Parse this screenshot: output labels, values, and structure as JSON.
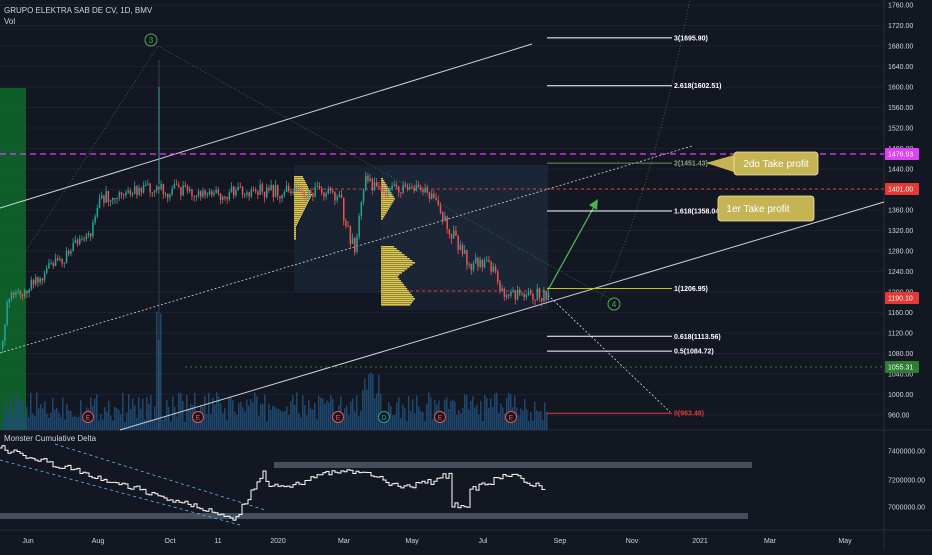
{
  "header": {
    "symbol_line": "GRUPO ELEKTRA SAB DE CV, 1D, BMV",
    "volume_label": "Vol"
  },
  "indicator": {
    "name": "Monster Cumulative Delta",
    "axis_ticks": [
      "7400000.00",
      "7200000.00",
      "7000000.00"
    ]
  },
  "colors": {
    "background": "#131722",
    "up_candle": "#26a69a",
    "down_candle": "#ef5350",
    "fib_line": "#ffffff",
    "fib_label": "#ffffff",
    "take_profit_box": "#c4b454",
    "magenta_level": "#e040fb",
    "red_level": "#e53935",
    "green_level": "#2e7d32",
    "volume_bar": "#1f4e79"
  },
  "chart_data": {
    "type": "candlestick",
    "title": "GRUPO ELEKTRA SAB DE CV, 1D, BMV",
    "x_tick_labels": [
      "Jun",
      "Aug",
      "Oct",
      "11",
      "2020",
      "Mar",
      "May",
      "Jul",
      "Sep",
      "Nov",
      "2021",
      "Mar",
      "May"
    ],
    "y_tick_labels": [
      "1760.00",
      "1720.00",
      "1680.00",
      "1640.00",
      "1600.00",
      "1560.00",
      "1520.00",
      "1480.00",
      "1440.00",
      "1400.00",
      "1360.00",
      "1320.00",
      "1280.00",
      "1240.00",
      "1200.00",
      "1160.00",
      "1120.00",
      "1080.00",
      "1040.00",
      "1000.00",
      "960.00"
    ],
    "ylim": [
      940,
      1775
    ],
    "price_path": [
      [
        0,
        1090
      ],
      [
        8,
        1200
      ],
      [
        15,
        1200
      ],
      [
        22,
        1200
      ],
      [
        30,
        1220
      ],
      [
        40,
        1230
      ],
      [
        50,
        1250
      ],
      [
        60,
        1260
      ],
      [
        70,
        1280
      ],
      [
        80,
        1300
      ],
      [
        90,
        1320
      ],
      [
        100,
        1380
      ],
      [
        110,
        1390
      ],
      [
        120,
        1400
      ],
      [
        130,
        1390
      ],
      [
        140,
        1400
      ],
      [
        150,
        1405
      ],
      [
        158,
        1410
      ],
      [
        165,
        1395
      ],
      [
        180,
        1400
      ],
      [
        200,
        1395
      ],
      [
        220,
        1390
      ],
      [
        240,
        1395
      ],
      [
        260,
        1398
      ],
      [
        280,
        1395
      ],
      [
        300,
        1392
      ],
      [
        320,
        1395
      ],
      [
        330,
        1398
      ],
      [
        340,
        1380
      ],
      [
        345,
        1330
      ],
      [
        350,
        1300
      ],
      [
        355,
        1280
      ],
      [
        360,
        1380
      ],
      [
        365,
        1420
      ],
      [
        370,
        1410
      ],
      [
        380,
        1390
      ],
      [
        390,
        1400
      ],
      [
        400,
        1405
      ],
      [
        410,
        1395
      ],
      [
        420,
        1400
      ],
      [
        430,
        1390
      ],
      [
        440,
        1350
      ],
      [
        450,
        1320
      ],
      [
        460,
        1280
      ],
      [
        470,
        1255
      ],
      [
        480,
        1260
      ],
      [
        490,
        1245
      ],
      [
        495,
        1240
      ],
      [
        500,
        1200
      ],
      [
        505,
        1195
      ],
      [
        510,
        1200
      ],
      [
        520,
        1195
      ],
      [
        530,
        1195
      ],
      [
        540,
        1195
      ],
      [
        547,
        1190
      ]
    ],
    "price_labels": [
      {
        "text": "1476.93",
        "color": "magenta"
      },
      {
        "text": "1401.00",
        "color": "red"
      },
      {
        "text": "1190.10",
        "color": "red"
      },
      {
        "text": "1055.31",
        "color": "green"
      }
    ],
    "fib_levels": [
      {
        "ratio": "3",
        "price": 1695.9,
        "label": "3(1695.90)"
      },
      {
        "ratio": "2.618",
        "price": 1602.51,
        "label": "2.618(1602.51)"
      },
      {
        "ratio": "2",
        "price": 1451.43,
        "label": "2(1451.43)"
      },
      {
        "ratio": "1.618",
        "price": 1358.04,
        "label": "1.618(1358.04)"
      },
      {
        "ratio": "1",
        "price": 1206.95,
        "label": "1(1206.95)"
      },
      {
        "ratio": "0.618",
        "price": 1113.56,
        "label": "0.618(1113.56)"
      },
      {
        "ratio": "0.5",
        "price": 1084.72,
        "label": "0.5(1084.72)"
      },
      {
        "ratio": "0",
        "price": 963.48,
        "label": "0(963.48)"
      }
    ],
    "annotations": [
      {
        "text": "2do Take profit"
      },
      {
        "text": "1er Take profit"
      },
      {
        "text": "3"
      },
      {
        "text": "4"
      }
    ],
    "event_markers": [
      "E",
      "E",
      "E",
      "D",
      "E",
      "E"
    ]
  }
}
